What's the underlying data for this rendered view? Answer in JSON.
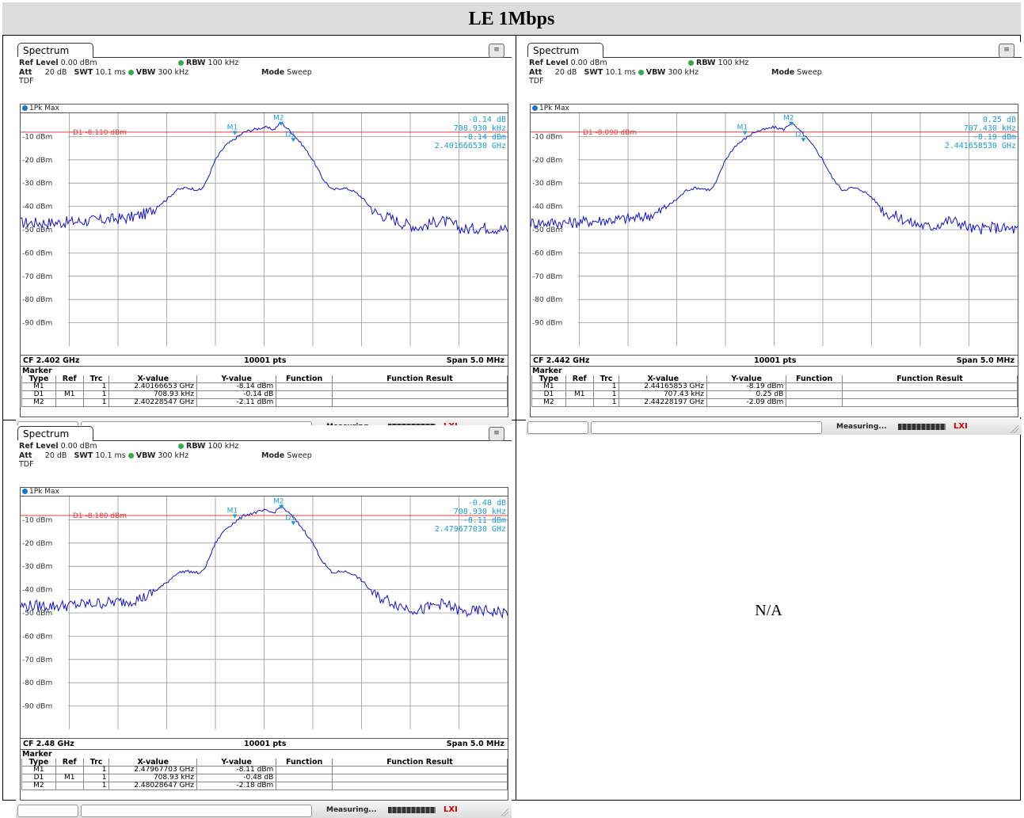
{
  "title": "LE 1Mbps",
  "na_text": "N/A",
  "common": {
    "tab": "Spectrum",
    "ref_level_label": "Ref Level",
    "ref_level": "0.00 dBm",
    "att_label": "Att",
    "att": "20 dB",
    "swt_label": "SWT",
    "swt": "10.1 ms",
    "rbw_label": "RBW",
    "rbw": "100 kHz",
    "vbw_label": "VBW",
    "vbw": "300 kHz",
    "mode_label": "Mode",
    "mode": "Sweep",
    "tdf": "TDF",
    "trace_label": "1Pk Max",
    "pts": "10001 pts",
    "span": "Span 5.0 MHz",
    "marker_title": "Marker",
    "columns": [
      "Type",
      "Ref",
      "Trc",
      "X-value",
      "Y-value",
      "Function",
      "Function Result"
    ],
    "measuring": "Measuring...",
    "y_ticks": [
      "-10 dBm",
      "-20 dBm",
      "-30 dBm",
      "-40 dBm",
      "-50 dBm",
      "-60 dBm",
      "-70 dBm",
      "-80 dBm",
      "-90 dBm"
    ],
    "colors": {
      "trace": "#1414c8",
      "display_line": "#e03c3c",
      "marker": "#1e9bd7"
    }
  },
  "panels": [
    {
      "cf": "CF 2.402 GHz",
      "d1_line": "D1 -8.110 dBm",
      "d1_value": -8.11,
      "info": [
        "-0.14 dB",
        "708.930 kHz",
        "-8.14 dBm",
        "2.401666530 GHz"
      ],
      "rows": [
        [
          "M1",
          "",
          "1",
          "2.40166653 GHz",
          "-8.14 dBm",
          "",
          ""
        ],
        [
          "D1",
          "M1",
          "1",
          "708.93 kHz",
          "-0.14 dB",
          "",
          ""
        ],
        [
          "M2",
          "",
          "1",
          "2.40228547 GHz",
          "-2.11 dBm",
          "",
          ""
        ]
      ]
    },
    {
      "cf": "CF 2.442 GHz",
      "d1_line": "D1 -8.090 dBm",
      "d1_value": -8.09,
      "info": [
        "0.25 dB",
        "707.430 kHz",
        "-8.19 dBm",
        "2.441658530 GHz"
      ],
      "rows": [
        [
          "M1",
          "",
          "1",
          "2.44165853 GHz",
          "-8.19 dBm",
          "",
          ""
        ],
        [
          "D1",
          "M1",
          "1",
          "707.43 kHz",
          "0.25 dB",
          "",
          ""
        ],
        [
          "M2",
          "",
          "1",
          "2.44228197 GHz",
          "-2.09 dBm",
          "",
          ""
        ]
      ]
    },
    {
      "cf": "CF 2.48 GHz",
      "d1_line": "D1 -8.180 dBm",
      "d1_value": -8.18,
      "info": [
        "-0.48 dB",
        "708.930 kHz",
        "-8.11 dBm",
        "2.479677030 GHz"
      ],
      "rows": [
        [
          "M1",
          "",
          "1",
          "2.47967703 GHz",
          "-8.11 dBm",
          "",
          ""
        ],
        [
          "D1",
          "M1",
          "1",
          "708.93 kHz",
          "-0.48 dB",
          "",
          ""
        ],
        [
          "M2",
          "",
          "1",
          "2.48028647 GHz",
          "-2.18 dBm",
          "",
          ""
        ]
      ]
    }
  ]
}
